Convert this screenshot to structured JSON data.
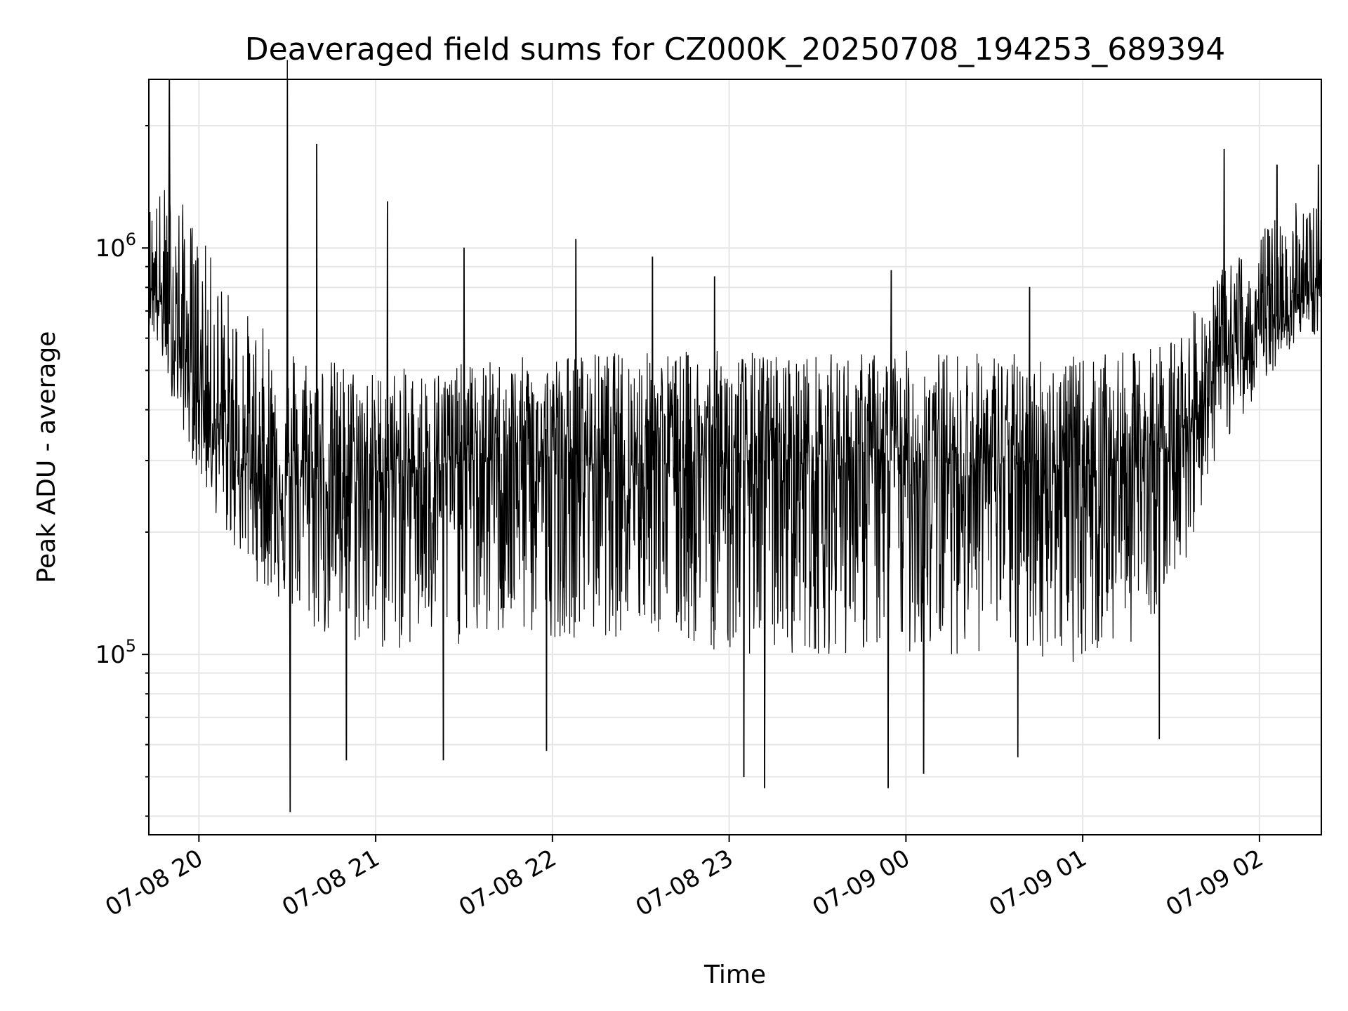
{
  "chart_data": {
    "type": "line",
    "title": "Deaveraged field sums for CZ000K_20250708_194253_689394",
    "xlabel": "Time",
    "ylabel": "Peak ADU - average",
    "yscale": "log",
    "ylim": [
      36000,
      2600000
    ],
    "xlim": [
      "07-08 19:43",
      "07-09 02:21"
    ],
    "grid": true,
    "x_ticks": [
      {
        "label": "07-08 20",
        "value": "07-08 20:00"
      },
      {
        "label": "07-08 21",
        "value": "07-08 21:00"
      },
      {
        "label": "07-08 22",
        "value": "07-08 22:00"
      },
      {
        "label": "07-08 23",
        "value": "07-08 23:00"
      },
      {
        "label": "07-09 00",
        "value": "07-09 00:00"
      },
      {
        "label": "07-09 01",
        "value": "07-09 01:00"
      },
      {
        "label": "07-09 02",
        "value": "07-09 02:00"
      }
    ],
    "y_ticks": [
      {
        "base": "10",
        "exp": "5",
        "value": 100000
      },
      {
        "base": "10",
        "exp": "6",
        "value": 1000000
      }
    ],
    "line_color": "#000000",
    "envelope": {
      "x": [
        "07-08 19:43",
        "07-08 19:50",
        "07-08 20:00",
        "07-08 20:10",
        "07-08 20:20",
        "07-08 20:40",
        "07-08 21:00",
        "07-08 21:30",
        "07-08 22:00",
        "07-08 22:30",
        "07-08 23:00",
        "07-08 23:30",
        "07-09 00:00",
        "07-09 00:30",
        "07-09 01:00",
        "07-09 01:20",
        "07-09 01:35",
        "07-09 01:45",
        "07-09 02:00",
        "07-09 02:10",
        "07-09 02:21"
      ],
      "upper": [
        1300000,
        1500000,
        1100000,
        800000,
        650000,
        550000,
        500000,
        520000,
        550000,
        560000,
        560000,
        550000,
        560000,
        560000,
        540000,
        560000,
        650000,
        850000,
        1100000,
        1300000,
        1300000
      ],
      "center": [
        850000,
        650000,
        450000,
        320000,
        280000,
        270000,
        280000,
        300000,
        310000,
        310000,
        300000,
        300000,
        300000,
        300000,
        290000,
        300000,
        360000,
        500000,
        620000,
        720000,
        800000
      ],
      "lower": [
        650000,
        450000,
        270000,
        190000,
        150000,
        110000,
        100000,
        105000,
        110000,
        110000,
        100000,
        100000,
        100000,
        100000,
        95000,
        110000,
        170000,
        300000,
        450000,
        560000,
        620000
      ]
    },
    "spikes_high": [
      {
        "x": "07-08 19:50",
        "y": 2600000
      },
      {
        "x": "07-08 20:30",
        "y": 2900000
      },
      {
        "x": "07-08 20:40",
        "y": 1800000
      },
      {
        "x": "07-08 21:04",
        "y": 1300000
      },
      {
        "x": "07-08 22:08",
        "y": 1050000
      },
      {
        "x": "07-08 21:30",
        "y": 1000000
      },
      {
        "x": "07-08 22:34",
        "y": 950000
      },
      {
        "x": "07-08 22:55",
        "y": 850000
      },
      {
        "x": "07-08 23:55",
        "y": 880000
      },
      {
        "x": "07-09 00:42",
        "y": 800000
      },
      {
        "x": "07-09 01:48",
        "y": 1750000
      },
      {
        "x": "07-09 02:06",
        "y": 1600000
      },
      {
        "x": "07-09 02:20",
        "y": 1600000
      }
    ],
    "spikes_low": [
      {
        "x": "07-08 20:31",
        "y": 41000
      },
      {
        "x": "07-08 20:50",
        "y": 55000
      },
      {
        "x": "07-08 21:23",
        "y": 55000
      },
      {
        "x": "07-08 21:58",
        "y": 58000
      },
      {
        "x": "07-08 23:05",
        "y": 50000
      },
      {
        "x": "07-08 23:12",
        "y": 47000
      },
      {
        "x": "07-08 23:54",
        "y": 47000
      },
      {
        "x": "07-09 00:06",
        "y": 51000
      },
      {
        "x": "07-09 00:38",
        "y": 56000
      },
      {
        "x": "07-09 01:26",
        "y": 62000
      }
    ]
  }
}
